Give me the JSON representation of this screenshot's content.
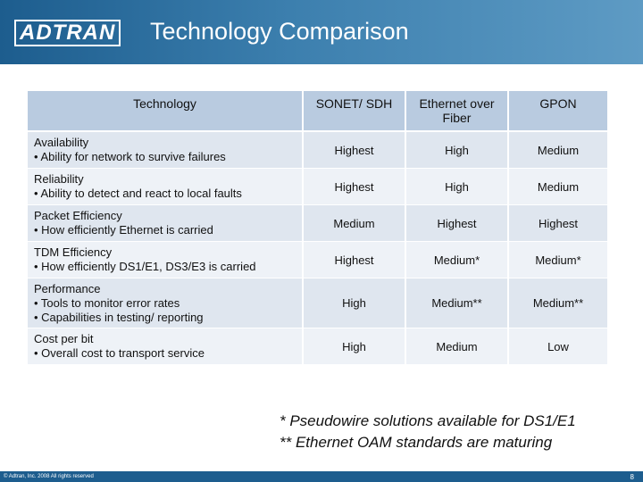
{
  "header": {
    "logo": "ADTRAN",
    "title": "Technology Comparison"
  },
  "table": {
    "columns": [
      "Technology",
      "SONET/ SDH",
      "Ethernet over Fiber",
      "GPON"
    ],
    "rows": [
      {
        "label": [
          "Availability",
          "• Ability for network to survive failures"
        ],
        "values": [
          "Highest",
          "High",
          "Medium"
        ]
      },
      {
        "label": [
          "Reliability",
          "• Ability to detect and react to local faults"
        ],
        "values": [
          "Highest",
          "High",
          "Medium"
        ]
      },
      {
        "label": [
          "Packet Efficiency",
          "• How efficiently Ethernet is carried"
        ],
        "values": [
          "Medium",
          "Highest",
          "Highest"
        ]
      },
      {
        "label": [
          "TDM Efficiency",
          "• How efficiently DS1/E1, DS3/E3 is carried"
        ],
        "values": [
          "Highest",
          "Medium*",
          "Medium*"
        ]
      },
      {
        "label": [
          "Performance",
          "• Tools to monitor error rates",
          "• Capabilities in testing/ reporting"
        ],
        "values": [
          "High",
          "Medium**",
          "Medium**"
        ]
      },
      {
        "label": [
          "Cost per bit",
          "• Overall cost to transport service"
        ],
        "values": [
          "High",
          "Medium",
          "Low"
        ]
      }
    ]
  },
  "footnotes": [
    "*  Pseudowire solutions available for DS1/E1",
    "** Ethernet OAM standards are maturing"
  ],
  "footer": {
    "copyright": "© Adtran, Inc. 2008 All rights reserved",
    "page_number": "8"
  }
}
